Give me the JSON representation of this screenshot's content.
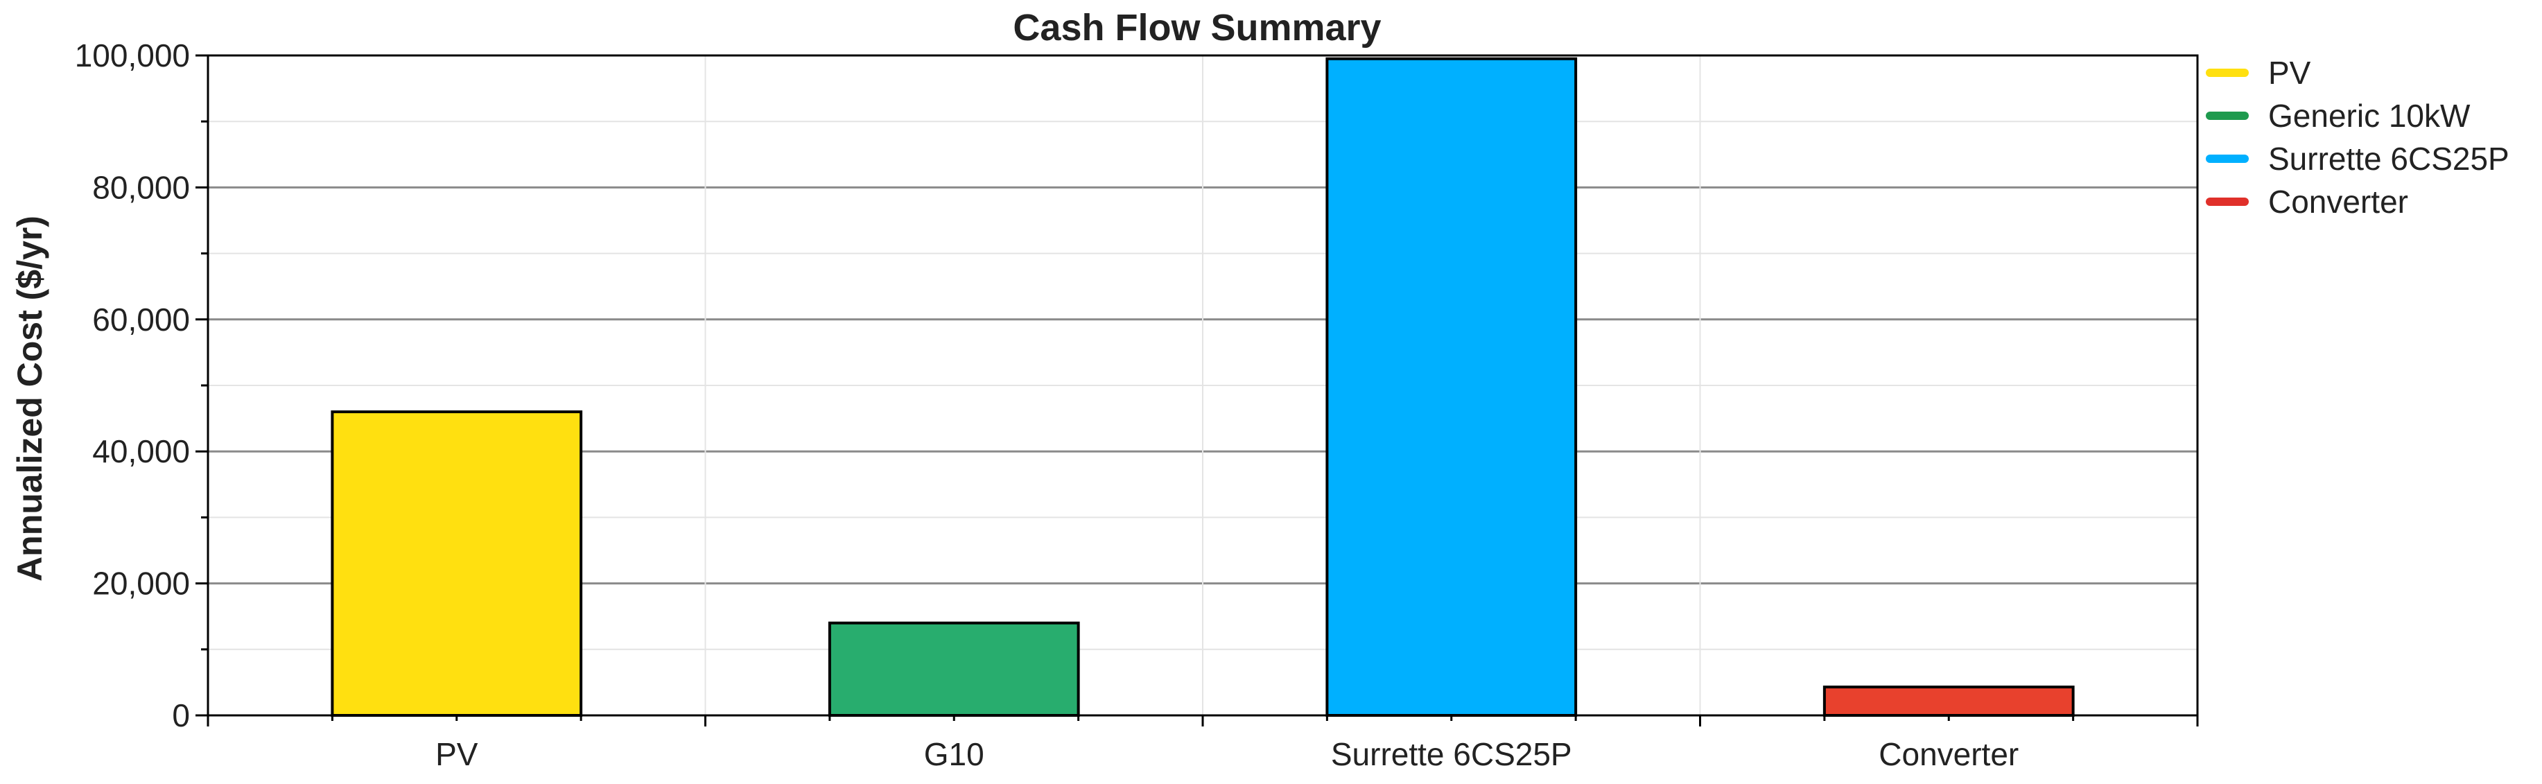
{
  "chart_data": {
    "type": "bar",
    "title": "Cash Flow Summary",
    "xlabel": "",
    "ylabel": "Annualized Cost ($/yr)",
    "ylim": [
      0,
      100000
    ],
    "yticks": [
      0,
      20000,
      40000,
      60000,
      80000,
      100000
    ],
    "ytick_labels": [
      "0",
      "20,000",
      "40,000",
      "60,000",
      "80,000",
      "100,000"
    ],
    "categories": [
      "PV",
      "G10",
      "Surrette 6CS25P",
      "Converter"
    ],
    "values": [
      46000,
      14000,
      99500,
      4300
    ],
    "bar_colors": [
      "#FFE010",
      "#28AD6E",
      "#00B0FF",
      "#E8412D"
    ],
    "grid": true,
    "legend": {
      "placement": "right",
      "entries": [
        {
          "label": "PV",
          "color": "#FFE010"
        },
        {
          "label": "Generic 10kW",
          "color": "#1F9A4E"
        },
        {
          "label": "Surrette 6CS25P",
          "color": "#00B0FF"
        },
        {
          "label": "Converter",
          "color": "#E0302A"
        }
      ]
    }
  }
}
